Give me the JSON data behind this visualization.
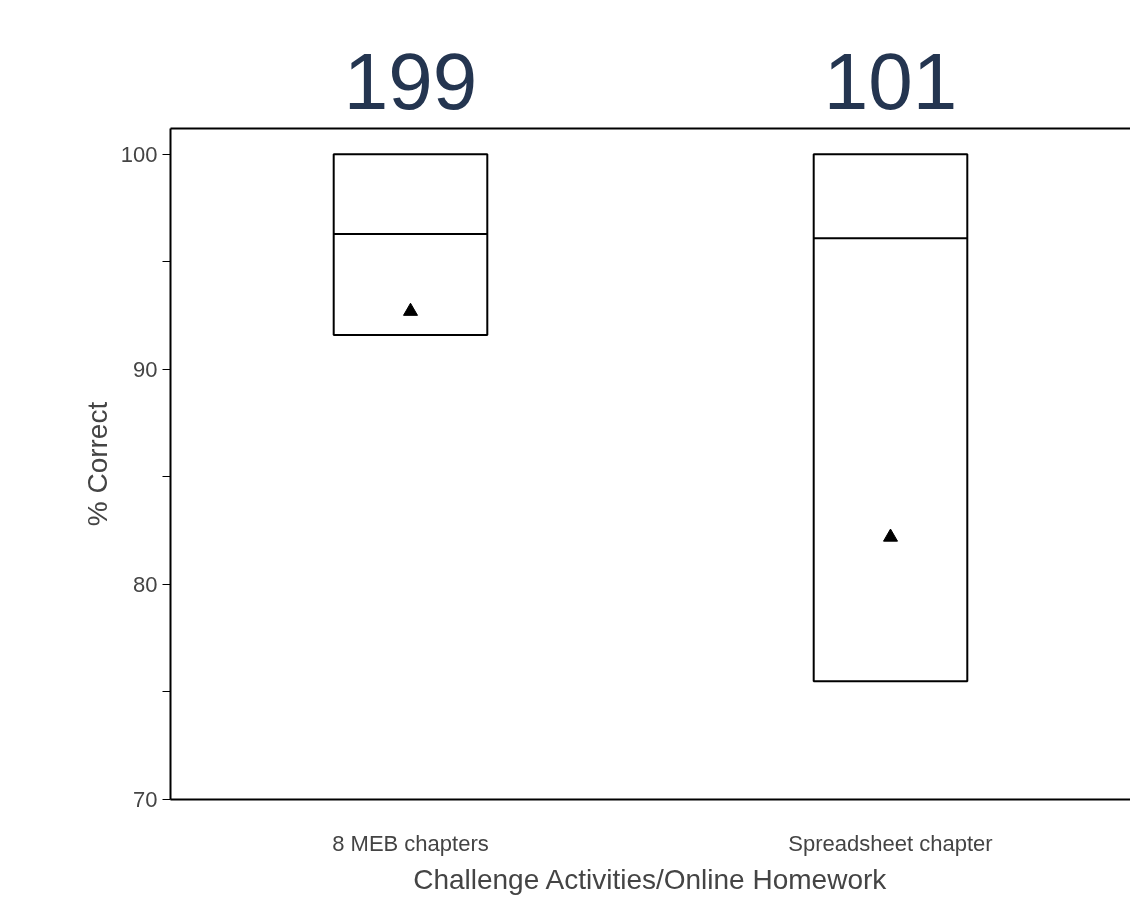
{
  "chart_data": {
    "type": "box",
    "categories": [
      "8 MEB chapters",
      "Spreadsheet chapter"
    ],
    "boxes": [
      {
        "low": 91.6,
        "q1": 91.6,
        "median": 96.3,
        "q3": 100,
        "high": 100,
        "mean": 92.7
      },
      {
        "low": 75.5,
        "q1": 75.5,
        "median": 96.1,
        "q3": 100,
        "high": 100,
        "mean": 82.2
      }
    ],
    "color": "#000000",
    "marker": "triangle",
    "xlabel": "Challenge Activities/Online Homework",
    "ylabel": "% Correct",
    "ylim": [
      70,
      101.2
    ],
    "yticks": [
      70,
      {
        "value": 75,
        "label": null
      },
      80,
      {
        "value": 85,
        "label": null
      },
      90,
      {
        "value": 95,
        "label": null
      },
      100
    ],
    "annotations": [
      "199",
      "101"
    ],
    "grid": false
  }
}
